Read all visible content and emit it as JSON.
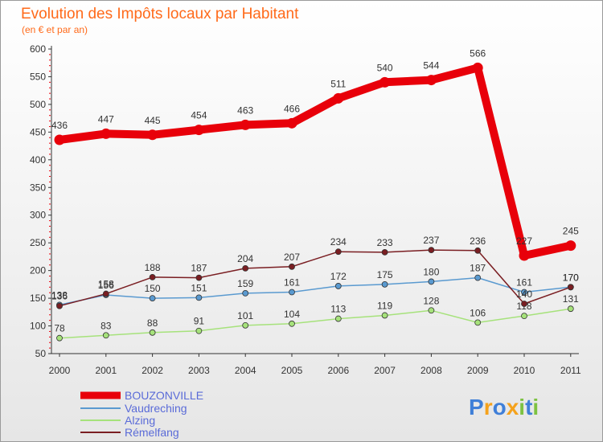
{
  "chart_data": {
    "type": "line",
    "title": "Evolution des Impôts locaux par Habitant",
    "subtitle": "(en € et par an)",
    "xlabel": "",
    "ylabel": "",
    "ylim": [
      50,
      600
    ],
    "yticks": [
      "50",
      "100",
      "150",
      "200",
      "250",
      "300",
      "350",
      "400",
      "450",
      "500",
      "550",
      "600"
    ],
    "categories": [
      "2000",
      "2001",
      "2002",
      "2003",
      "2004",
      "2005",
      "2006",
      "2007",
      "2008",
      "2009",
      "2010",
      "2011"
    ],
    "grid": false,
    "legend": "bottom-left",
    "series": [
      {
        "name": "BOUZONVILLE",
        "color": "#e8000a",
        "values": [
          436,
          447,
          445,
          454,
          463,
          466,
          511,
          540,
          544,
          566,
          227,
          245
        ]
      },
      {
        "name": "Vaudreching",
        "color": "#5a9ad0",
        "values": [
          138,
          156,
          150,
          151,
          159,
          161,
          172,
          175,
          180,
          187,
          161,
          170
        ]
      },
      {
        "name": "Alzing",
        "color": "#a6e27b",
        "values": [
          78,
          83,
          88,
          91,
          101,
          104,
          113,
          119,
          128,
          106,
          118,
          131
        ]
      },
      {
        "name": "Rémelfang",
        "color": "#7a1e22",
        "values": [
          136,
          158,
          188,
          187,
          204,
          207,
          234,
          233,
          237,
          236,
          140,
          170
        ]
      }
    ]
  },
  "brand": {
    "letters": [
      "P",
      "r",
      "o",
      "x",
      "i",
      "t",
      "i"
    ],
    "colors": [
      "#3f7fd8",
      "#f5a21c",
      "#3f7fd8",
      "#f5a21c",
      "#7dc242",
      "#3f7fd8",
      "#7dc242"
    ]
  }
}
